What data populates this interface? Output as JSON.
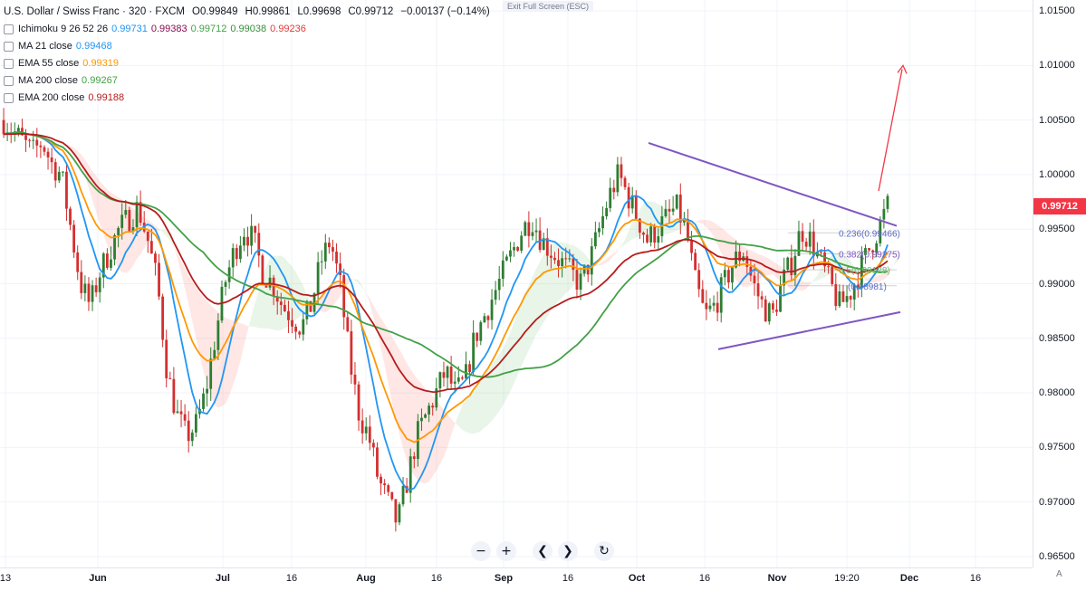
{
  "window": {
    "exit_fullscreen": "Exit Full Screen (ESC)"
  },
  "header": {
    "symbol_title": "U.S. Dollar / Swiss Franc · 320 · FXCM",
    "ohlc": {
      "open": "O0.99849",
      "high": "H0.99861",
      "low": "L0.99698",
      "close": "C0.99712",
      "change": "−0.00137 (−0.14%)"
    }
  },
  "indicators": [
    {
      "label": "Ichimoku 9 26 52 26",
      "values": [
        "0.99731",
        "0.99383",
        "0.99712",
        "0.99038",
        "0.99236"
      ],
      "colors": [
        "#2196f3",
        "#880e4f",
        "#43a047",
        "#388e3c",
        "#e53935"
      ]
    },
    {
      "label": "MA 21 close",
      "values": [
        "0.99468"
      ],
      "colors": [
        "#2196f3"
      ]
    },
    {
      "label": "EMA 55 close",
      "values": [
        "0.99319"
      ],
      "colors": [
        "#ff9800"
      ]
    },
    {
      "label": "MA 200 close",
      "values": [
        "0.99267"
      ],
      "colors": [
        "#43a047"
      ]
    },
    {
      "label": "EMA 200 close",
      "values": [
        "0.99188"
      ],
      "colors": [
        "#b71c1c"
      ]
    }
  ],
  "price_axis": {
    "ticks": [
      "1.01500",
      "1.01000",
      "1.00500",
      "1.00000",
      "0.99500",
      "0.99000",
      "0.98500",
      "0.98000",
      "0.97500",
      "0.97000",
      "0.96500"
    ],
    "current_price": "0.99712",
    "current_color": "#f23645"
  },
  "time_axis": {
    "ticks": [
      "13",
      "Jun",
      "Jul",
      "16",
      "Aug",
      "16",
      "Sep",
      "16",
      "Oct",
      "16",
      "Nov",
      "19:20",
      "Dec",
      "16"
    ]
  },
  "fib_labels": [
    "0.236(0.99466)",
    "0.382(0.99275)",
    "0.5(0.99128)",
    "(0.98981)"
  ],
  "nav": {
    "zoom_out": "−",
    "zoom_in": "+",
    "scroll_left": "❮",
    "scroll_right": "❯",
    "reset": "↻",
    "auto": "A"
  },
  "chart_data": {
    "type": "candlestick",
    "symbol": "USDCHF",
    "interval": "320",
    "ylim": [
      0.964,
      1.016
    ],
    "x_ticks": [
      "13",
      "Jun",
      "Jul",
      "16",
      "Aug",
      "16",
      "Sep",
      "16",
      "Oct",
      "16",
      "Nov",
      "19:20",
      "Dec",
      "16"
    ],
    "close_path": [
      1.005,
      1.004,
      1.003,
      1.002,
      1.003,
      1.001,
      1.0,
      0.995,
      0.99,
      0.988,
      0.991,
      0.993,
      0.995,
      0.996,
      0.997,
      0.994,
      0.99,
      0.982,
      0.978,
      0.976,
      0.977,
      0.98,
      0.985,
      0.99,
      0.993,
      0.995,
      0.994,
      0.991,
      0.99,
      0.988,
      0.987,
      0.986,
      0.988,
      0.992,
      0.994,
      0.99,
      0.983,
      0.978,
      0.976,
      0.972,
      0.97,
      0.968,
      0.972,
      0.976,
      0.978,
      0.98,
      0.982,
      0.98,
      0.981,
      0.985,
      0.987,
      0.989,
      0.991,
      0.993,
      0.995,
      0.996,
      0.994,
      0.993,
      0.992,
      0.991,
      0.99,
      0.992,
      0.995,
      0.998,
      1.0,
      0.998,
      0.996,
      0.994,
      0.995,
      0.996,
      0.997,
      0.995,
      0.99,
      0.987,
      0.988,
      0.99,
      0.992,
      0.993,
      0.99,
      0.988,
      0.987,
      0.99,
      0.992,
      0.995,
      0.994,
      0.992,
      0.99,
      0.988,
      0.989,
      0.991,
      0.993,
      0.995,
      0.9971
    ],
    "series": [
      {
        "name": "MA 21 close",
        "color": "#2196f3",
        "last": 0.99468
      },
      {
        "name": "EMA 55 close",
        "color": "#ff9800",
        "last": 0.99319
      },
      {
        "name": "MA 200 close",
        "color": "#43a047",
        "last": 0.99267
      },
      {
        "name": "EMA 200 close",
        "color": "#b71c1c",
        "last": 0.99188
      }
    ],
    "annotations": {
      "triangle_upper": {
        "from": [
          "Oct",
          1.0029
        ],
        "to": [
          "19:20",
          0.9953
        ],
        "color": "#7e57c2"
      },
      "triangle_lower": {
        "from": [
          "16",
          0.984
        ],
        "to": [
          "19:20",
          0.9874
        ],
        "color": "#7e57c2"
      },
      "target_arrow": {
        "from": [
          "19:20",
          0.9985
        ],
        "to": [
          "19:20",
          1.01
        ],
        "color": "#f23645"
      },
      "fib_levels": [
        0.99466,
        0.99275,
        0.99128,
        0.98981
      ]
    },
    "grid": true
  }
}
